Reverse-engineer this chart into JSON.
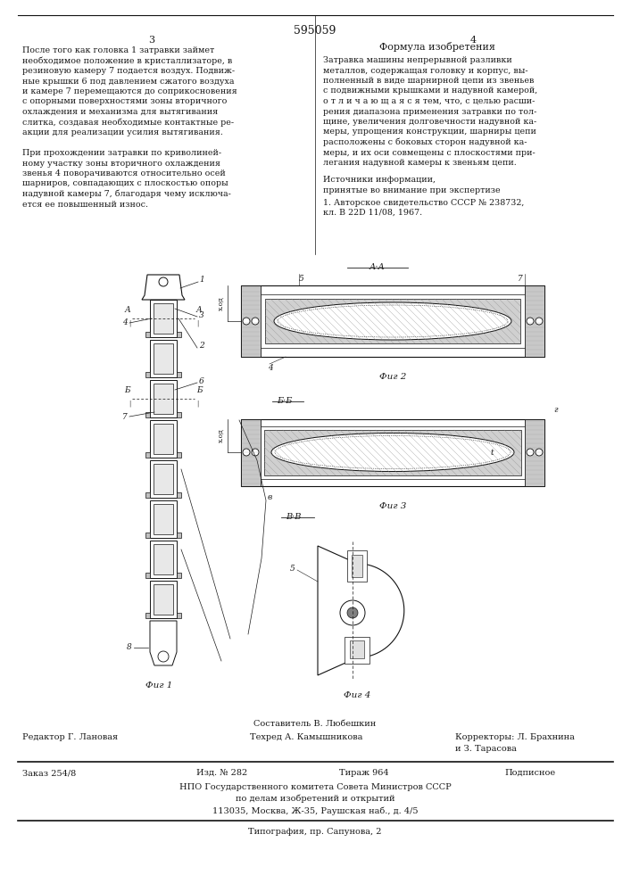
{
  "page_number": "595059",
  "col_left": "3",
  "col_right": "4",
  "title_right": "Формула изобретения",
  "text_left": "После того как головка 1 затравки займет\nнеобходимое положение в кристаллизаторе, в\nрезиновую камеру 7 подается воздух. Подвиж-\nные крышки 6 под давлением сжатого воздуха\nи камере 7 перемещаются до соприкосновения\nс опорными поверхностями зоны вторичного\nохлаждения и механизма для вытягивания\nслитка, создавая необходимые контактные ре-\nакции для реализации усилия вытягивания.\n\nПри прохождении затравки по криволиней-\nному участку зоны вторичного охлаждения\nзвенья 4 поворачиваются относительно осей\nшарниров, совпадающих с плоскостью опоры\nнадувной камеры 7, благодаря чему исключа-\nется ее повышенный износ.",
  "text_right": "Затравка машины непрерывной разливки\nметаллов, содержащая головку и корпус, вы-\nполненный в виде шарнирной цепи из звеньев\nс подвижными крышками и надувной камерой,\nо т л и ч а ю щ а я с я тем, что, с целью расши-\nрения диапазона применения затравки по тол- 10\nщине, увеличения долговечности надувной ка-\nмеры, упрощения конструкции, шарниры цепи\nрасположены с боковых сторон надувной ка-\nмеры, и их оси совмещены с плоскостями при-\nлегания надувной камеры к звеньям цепи.",
  "sources_header": "Источники информации,",
  "sources_sub": "принятые во внимание при экспертизе",
  "source_1": "1. Авторское свидетельство СССР № 238732,\nкл. В 22Д 11/08, 1967.",
  "footer_compiler": "Составитель В. Любешкин",
  "footer_editor": "Редактор Г. Лановая",
  "footer_tech": "Техред А. Камышникова",
  "footer_correctors": "Корректоры: Л. Брахнина",
  "footer_correctors2": "и З. Тарасова",
  "footer_order": "Заказ 254/8",
  "footer_pub": "Изд. № 282",
  "footer_circulation": "Тираж 964",
  "footer_sign": "Подписное",
  "footer_npo": "НПО Государственного комитета Совета Министров СССР",
  "footer_npo2": "по делам изобретений и открытий",
  "footer_npo3": "113035, Москва, Ж-35, Раушская наб., д. 4/5",
  "footer_typography": "Типография, пр. Сапунова, 2",
  "fig1_label": "Фиг 1",
  "fig2_label": "Фиг 2",
  "fig3_label": "Фиг 3",
  "fig4_label": "Фиг 4",
  "bg_color": "#ffffff",
  "text_color": "#1a1a1a",
  "line_color": "#111111",
  "fig_line_color": "#111111"
}
